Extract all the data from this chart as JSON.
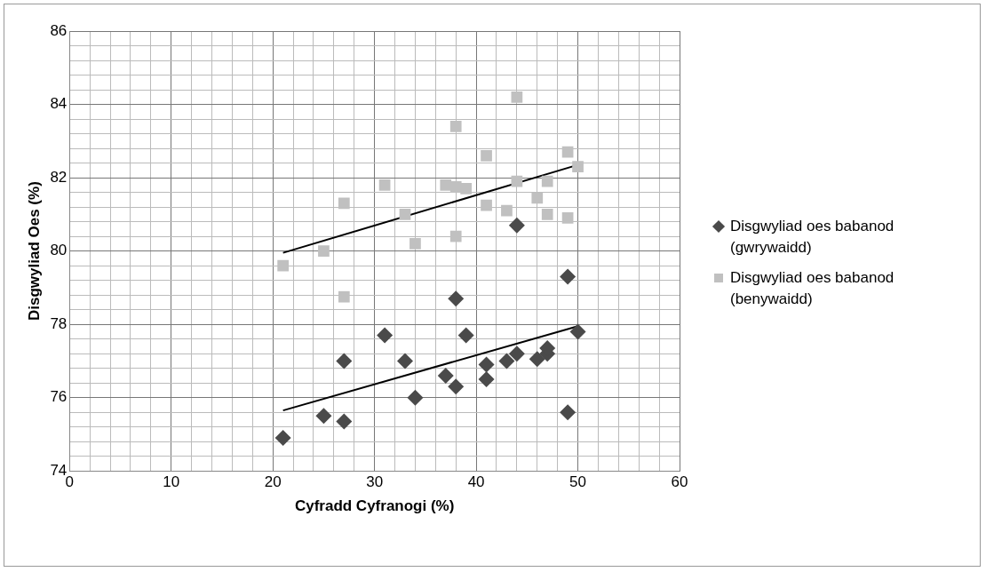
{
  "chart_data": {
    "type": "scatter",
    "xlabel": "Cyfradd Cyfranogi (%)",
    "ylabel": "Disgwyliad Oes (%)",
    "xlim": [
      0,
      60
    ],
    "ylim": [
      74,
      86
    ],
    "xticks": [
      0,
      {
        "value": 2,
        "label": null
      },
      {
        "value": 4,
        "label": null
      },
      {
        "value": 6,
        "label": null
      },
      {
        "value": 8,
        "label": null
      },
      10,
      {
        "value": 12,
        "label": null
      },
      {
        "value": 14,
        "label": null
      },
      {
        "value": 16,
        "label": null
      },
      {
        "value": 18,
        "label": null
      },
      20,
      {
        "value": 22,
        "label": null
      },
      {
        "value": 24,
        "label": null
      },
      {
        "value": 26,
        "label": null
      },
      {
        "value": 28,
        "label": null
      },
      30,
      {
        "value": 32,
        "label": null
      },
      {
        "value": 34,
        "label": null
      },
      {
        "value": 36,
        "label": null
      },
      {
        "value": 38,
        "label": null
      },
      40,
      {
        "value": 42,
        "label": null
      },
      {
        "value": 44,
        "label": null
      },
      {
        "value": 46,
        "label": null
      },
      {
        "value": 48,
        "label": null
      },
      50,
      {
        "value": 52,
        "label": null
      },
      {
        "value": 54,
        "label": null
      },
      {
        "value": 56,
        "label": null
      },
      {
        "value": 58,
        "label": null
      },
      60
    ],
    "yticks": [
      74,
      {
        "value": 74.4,
        "label": null
      },
      {
        "value": 74.8,
        "label": null
      },
      {
        "value": 75.2,
        "label": null
      },
      {
        "value": 75.6,
        "label": null
      },
      76,
      {
        "value": 76.4,
        "label": null
      },
      {
        "value": 76.8,
        "label": null
      },
      {
        "value": 77.2,
        "label": null
      },
      {
        "value": 77.6,
        "label": null
      },
      78,
      {
        "value": 78.4,
        "label": null
      },
      {
        "value": 78.8,
        "label": null
      },
      {
        "value": 79.2,
        "label": null
      },
      {
        "value": 79.6,
        "label": null
      },
      80,
      {
        "value": 80.4,
        "label": null
      },
      {
        "value": 80.8,
        "label": null
      },
      {
        "value": 81.2,
        "label": null
      },
      {
        "value": 81.6,
        "label": null
      },
      82,
      {
        "value": 82.4,
        "label": null
      },
      {
        "value": 82.8,
        "label": null
      },
      {
        "value": 83.2,
        "label": null
      },
      {
        "value": 83.6,
        "label": null
      },
      84,
      {
        "value": 84.4,
        "label": null
      },
      {
        "value": 84.8,
        "label": null
      },
      {
        "value": 85.2,
        "label": null
      },
      {
        "value": 85.6,
        "label": null
      },
      86
    ],
    "grid": true,
    "legend": "right",
    "series": [
      {
        "name": "Disgwyliad oes babanod (gwrywaidd)",
        "color": "#4a4a4a",
        "marker": "diamond",
        "x": [
          21,
          25,
          27,
          27,
          31,
          33,
          34,
          37,
          38,
          38,
          39,
          41,
          41,
          43,
          44,
          44,
          46,
          47,
          47,
          49,
          49,
          50
        ],
        "values": [
          74.9,
          75.5,
          75.35,
          77.0,
          77.7,
          77.0,
          76.0,
          76.6,
          76.3,
          78.7,
          77.7,
          76.9,
          76.5,
          77.0,
          77.2,
          80.7,
          77.05,
          77.2,
          77.35,
          75.6,
          79.3,
          77.8
        ]
      },
      {
        "name": "Disgwyliad oes babanod (benywaidd)",
        "color": "#c0c0c0",
        "marker": "square",
        "x": [
          21,
          25,
          27,
          27,
          31,
          33,
          34,
          37,
          38,
          38,
          38,
          39,
          41,
          41,
          43,
          44,
          44,
          46,
          47,
          47,
          49,
          49,
          50
        ],
        "values": [
          79.6,
          80.0,
          81.3,
          78.75,
          81.8,
          81.0,
          80.2,
          81.8,
          81.75,
          83.4,
          80.4,
          81.7,
          82.6,
          81.25,
          81.1,
          84.2,
          81.9,
          81.45,
          81.9,
          81.0,
          82.7,
          80.9,
          82.3
        ]
      },
      {
        "type": "line",
        "color": "#000000",
        "marker": "none",
        "x": [
          21,
          50
        ],
        "values": [
          75.65,
          77.95
        ]
      },
      {
        "type": "line",
        "color": "#000000",
        "marker": "none",
        "x": [
          21,
          50
        ],
        "values": [
          79.95,
          82.35
        ]
      }
    ]
  }
}
